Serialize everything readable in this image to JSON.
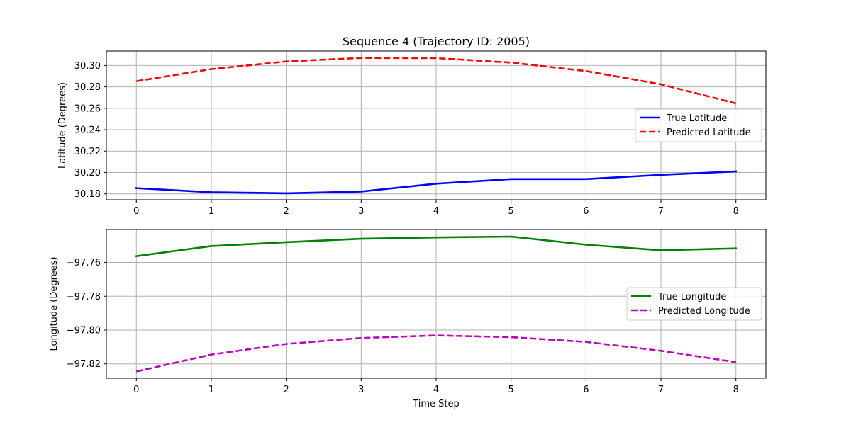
{
  "title": "Sequence 4 (Trajectory ID: 2005)",
  "xlabel": "Time Step",
  "chart_data": [
    {
      "type": "line",
      "title": "Sequence 4 (Trajectory ID: 2005)",
      "xlabel": "",
      "ylabel": "Latitude (Degrees)",
      "x": [
        0,
        1,
        2,
        3,
        4,
        5,
        6,
        7,
        8
      ],
      "xlim": [
        -0.4,
        8.4
      ],
      "ylim": [
        30.1745,
        30.3135
      ],
      "yticks": [
        30.18,
        30.2,
        30.22,
        30.24,
        30.26,
        30.28,
        30.3
      ],
      "ytick_labels": [
        "30.18",
        "30.20",
        "30.22",
        "30.24",
        "30.26",
        "30.28",
        "30.30"
      ],
      "grid": true,
      "legend_position": "center-right",
      "series": [
        {
          "name": "True Latitude",
          "color": "#0000ff",
          "dash": "solid",
          "values": [
            30.1853,
            30.1815,
            30.1805,
            30.1822,
            30.1895,
            30.1938,
            30.1938,
            30.1978,
            30.201
          ]
        },
        {
          "name": "Predicted Latitude",
          "color": "#ff0000",
          "dash": "dashed",
          "values": [
            30.2853,
            30.2966,
            30.3038,
            30.3071,
            30.3069,
            30.3027,
            30.2948,
            30.2824,
            30.2645
          ]
        }
      ]
    },
    {
      "type": "line",
      "title": "",
      "xlabel": "Time Step",
      "ylabel": "Longitude (Degrees)",
      "x": [
        0,
        1,
        2,
        3,
        4,
        5,
        6,
        7,
        8
      ],
      "xlim": [
        -0.4,
        8.4
      ],
      "ylim": [
        -97.8285,
        -97.7405
      ],
      "yticks": [
        -97.82,
        -97.8,
        -97.78,
        -97.76
      ],
      "ytick_labels": [
        "−97.82",
        "−97.80",
        "−97.78",
        "−97.76"
      ],
      "grid": true,
      "legend_position": "center-right",
      "series": [
        {
          "name": "True Longitude",
          "color": "#008000",
          "dash": "solid",
          "values": [
            -97.7563,
            -97.7503,
            -97.748,
            -97.746,
            -97.7452,
            -97.7447,
            -97.7495,
            -97.7528,
            -97.7517
          ]
        },
        {
          "name": "Predicted Longitude",
          "color": "#bf00bf",
          "dash": "dashed",
          "values": [
            -97.8245,
            -97.8145,
            -97.8082,
            -97.8047,
            -97.8032,
            -97.8042,
            -97.807,
            -97.8123,
            -97.819
          ]
        }
      ]
    }
  ]
}
